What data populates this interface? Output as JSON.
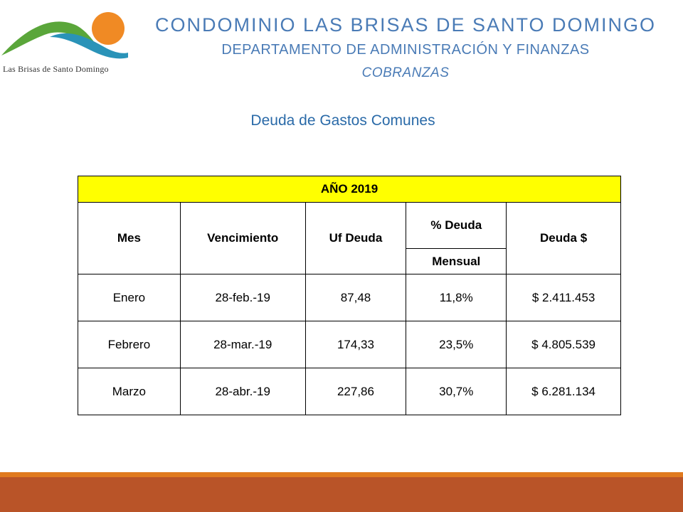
{
  "logo": {
    "text": "Las Brisas de Santo Domingo",
    "colors": {
      "sun": "#f08a24",
      "hill_green": "#5aa63a",
      "wave_blue": "#2a93b8"
    }
  },
  "header": {
    "title": "CONDOMINIO LAS BRISAS DE SANTO DOMINGO",
    "department": "DEPARTAMENTO DE ADMINISTRACIÓN Y FINANZAS",
    "subtitle": "COBRANZAS"
  },
  "section_title": "Deuda de Gastos Comunes",
  "table": {
    "year_label": "AÑO 2019",
    "headers": {
      "mes": "Mes",
      "vencimiento": "Vencimiento",
      "uf_deuda": "Uf Deuda",
      "pct_deuda": "% Deuda",
      "mensual": "Mensual",
      "deuda": "Deuda $"
    },
    "rows": [
      {
        "mes": "Enero",
        "vencimiento": "28-feb.-19",
        "uf": "87,48",
        "pct": "11,8%",
        "deuda": "$ 2.411.453"
      },
      {
        "mes": "Febrero",
        "vencimiento": "28-mar.-19",
        "uf": "174,33",
        "pct": "23,5%",
        "deuda": "$ 4.805.539"
      },
      {
        "mes": "Marzo",
        "vencimiento": "28-abr.-19",
        "uf": "227,86",
        "pct": "30,7%",
        "deuda": "$ 6.281.134"
      }
    ]
  },
  "colors": {
    "header_text": "#4a7bb6",
    "section_title": "#2a6aa8",
    "year_row_bg": "#ffff00",
    "footer_orange": "#e07a1f",
    "footer_brown": "#b95428"
  }
}
